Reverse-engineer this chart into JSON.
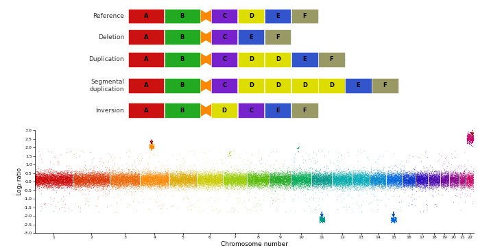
{
  "row_labels": [
    "Reference",
    "Deletion",
    "Duplication",
    "Segmental\nduplication",
    "Inversion"
  ],
  "segment_colors": {
    "A": "#cc1111",
    "B": "#22aa22",
    "C": "#7722cc",
    "D": "#dddd00",
    "E": "#3355cc",
    "F": "#999966"
  },
  "connector_color": "#ff8800",
  "line_color": "#aaaadd",
  "bg_color": "#ffffff",
  "chr_colors": [
    "#cc0000",
    "#dd3300",
    "#ee6600",
    "#ff8800",
    "#ddaa00",
    "#cccc00",
    "#99cc00",
    "#55bb00",
    "#22aa22",
    "#00aa55",
    "#009988",
    "#00aaaa",
    "#00aabb",
    "#0088cc",
    "#0066dd",
    "#0033cc",
    "#2200bb",
    "#4400aa",
    "#660099",
    "#880088",
    "#aa0077",
    "#cc0066"
  ],
  "chr_sizes": [
    248,
    242,
    199,
    191,
    181,
    171,
    159,
    146,
    141,
    135,
    135,
    133,
    114,
    107,
    102,
    90,
    83,
    78,
    59,
    63,
    47,
    51
  ],
  "n_points_per_chr": [
    4000,
    3900,
    3200,
    3100,
    2900,
    2750,
    2600,
    2350,
    2250,
    2200,
    2200,
    2150,
    1850,
    1750,
    1650,
    1450,
    1350,
    1250,
    950,
    1000,
    750,
    820
  ],
  "xlabel": "Chromosome number",
  "ylabel": "Log₂ ratio",
  "chr_labels": [
    "1",
    "2",
    "3",
    "4",
    "5",
    "6",
    "7",
    "8",
    "9",
    "10",
    "11",
    "12",
    "13",
    "14",
    "15",
    "16",
    "17",
    "18",
    "19",
    "20",
    "21",
    "22"
  ],
  "scatter_mean": 0.1,
  "scatter_std": 0.22,
  "ytick_labels": [
    "-3.0",
    "-2.5",
    "-2.0",
    "-1.5",
    "-1.0",
    "-0.5",
    "0.0",
    "0.5",
    "1.0",
    "1.5",
    "2.0",
    "2.5",
    "3.0"
  ]
}
